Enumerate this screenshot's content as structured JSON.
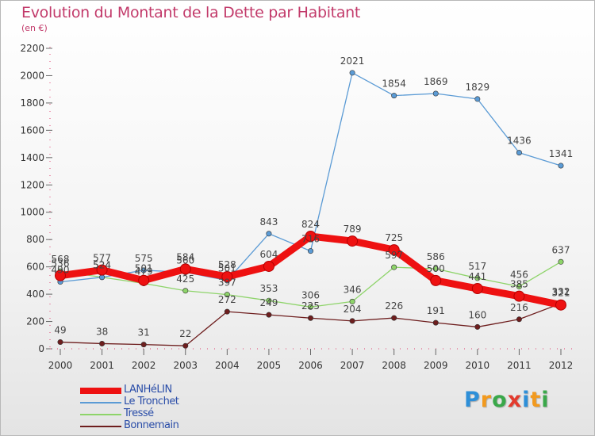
{
  "title": "Evolution du Montant de la Dette par Habitant",
  "subtitle": "(en €)",
  "brand": {
    "text": "Proxiti",
    "letter_colors": [
      "#2e8fd8",
      "#f29a1e",
      "#3aa84a",
      "#e33b2e",
      "#2e8fd8",
      "#f29a1e",
      "#3aa84a"
    ]
  },
  "chart_data": {
    "type": "line",
    "title": "Evolution du Montant de la Dette par Habitant",
    "subtitle": "(en €)",
    "x": [
      2000,
      2001,
      2002,
      2003,
      2004,
      2005,
      2006,
      2007,
      2008,
      2009,
      2010,
      2011,
      2012
    ],
    "ylim": [
      0,
      2200
    ],
    "yticks": [
      0,
      200,
      400,
      600,
      800,
      1000,
      1200,
      1400,
      1600,
      1800,
      2000,
      2200
    ],
    "grid": false,
    "legend_position": "bottom-left",
    "series": [
      {
        "name": "Bonnemain",
        "color": "#6e1e1e",
        "values": [
          49,
          38,
          31,
          22,
          272,
          249,
          225,
          204,
          226,
          191,
          160,
          216,
          332
        ]
      },
      {
        "name": "Tressé",
        "color": "#8ed46a",
        "values": [
          568,
          524,
          479,
          425,
          397,
          353,
          306,
          346,
          597,
          586,
          517,
          456,
          637
        ]
      },
      {
        "name": "Le Tronchet",
        "color": "#5b9bd5",
        "values": [
          490,
          524,
          575,
          560,
          501,
          843,
          716,
          2021,
          1854,
          1869,
          1829,
          1436,
          1341
        ]
      },
      {
        "name": "LANHéLIN",
        "color": "#ee1111",
        "values": [
          536,
          577,
          501,
          584,
          528,
          604,
          824,
          789,
          725,
          500,
          441,
          385,
          321
        ]
      }
    ],
    "data_labels": [
      [
        49,
        38,
        31,
        22,
        272,
        249,
        225,
        204,
        226,
        191,
        160,
        216,
        332
      ],
      [
        568,
        524,
        479,
        425,
        397,
        353,
        306,
        346,
        597,
        586,
        517,
        456,
        637
      ],
      [
        490,
        524,
        575,
        560,
        501,
        843,
        716,
        2021,
        1854,
        1869,
        1829,
        1436,
        1341
      ],
      [
        536,
        577,
        501,
        584,
        528,
        604,
        824,
        789,
        725,
        500,
        441,
        385,
        321
      ]
    ]
  },
  "legend": [
    {
      "label": "LANHéLIN",
      "color": "#ee1111",
      "weight": "thick"
    },
    {
      "label": "Le Tronchet",
      "color": "#5b9bd5",
      "weight": "thin"
    },
    {
      "label": "Tressé",
      "color": "#8ed46a",
      "weight": "thin"
    },
    {
      "label": "Bonnemain",
      "color": "#6e1e1e",
      "weight": "thin"
    }
  ]
}
